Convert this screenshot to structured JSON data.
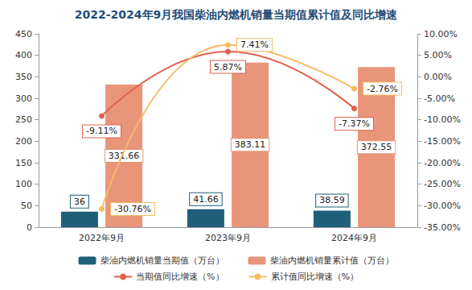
{
  "chart_data": {
    "type": "bar",
    "title": "2022-2024年9月我国柴油内燃机销量当期值累计值及同比增速",
    "categories": [
      "2022年9月",
      "2023年9月",
      "2024年9月"
    ],
    "series": [
      {
        "name": "柴油内燃机销量当期值（万台）",
        "type": "bar",
        "color": "#1f5f7a",
        "values": [
          36,
          41.66,
          38.59
        ]
      },
      {
        "name": "柴油内燃机销量累计值（万台）",
        "type": "bar",
        "color": "#e8957a",
        "values": [
          331.66,
          383.11,
          372.55
        ]
      },
      {
        "name": "当期值同比增速（%）",
        "type": "line",
        "axis": "y2",
        "color": "#e0604f",
        "marker": "circle",
        "values": [
          -9.11,
          5.87,
          -7.37
        ],
        "value_labels": [
          "-9.11%",
          "5.87%",
          "-7.37%"
        ]
      },
      {
        "name": "累计值同比增速（%）",
        "type": "line",
        "axis": "y2",
        "color": "#f6bb63",
        "marker": "circle",
        "values": [
          -30.76,
          7.41,
          -2.76
        ],
        "value_labels": [
          "-30.76%",
          "7.41%",
          "-2.76%"
        ]
      }
    ],
    "ylim": [
      0,
      450
    ],
    "yticks": [
      0,
      50,
      100,
      150,
      200,
      250,
      300,
      350,
      400,
      450
    ],
    "y2lim": [
      -35,
      10
    ],
    "y2ticks": [
      {
        "value": -35,
        "label": "-35.00%"
      },
      {
        "value": -30,
        "label": "-30.00%"
      },
      {
        "value": -25,
        "label": "-25.00%"
      },
      {
        "value": -20,
        "label": "-20.00%"
      },
      {
        "value": -15,
        "label": "-15.00%"
      },
      {
        "value": -10,
        "label": "-10.00%"
      },
      {
        "value": -5,
        "label": "-5.00%"
      },
      {
        "value": 0,
        "label": "0.00%"
      },
      {
        "value": 5,
        "label": "5.00%"
      },
      {
        "value": 10,
        "label": "10.00%"
      }
    ],
    "grid": false,
    "legend": "bottom",
    "data_labels": true
  }
}
